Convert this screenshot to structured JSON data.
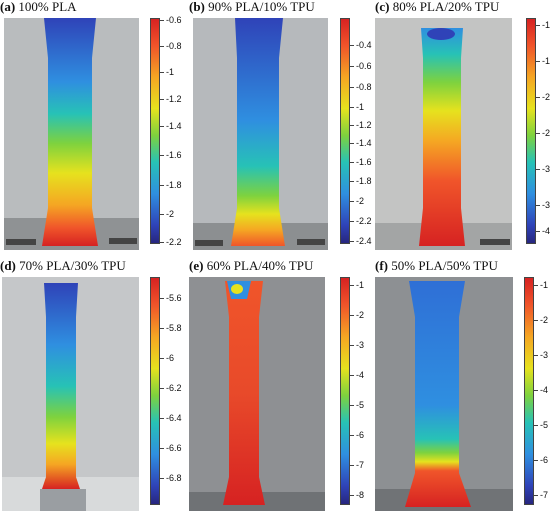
{
  "panels": [
    {
      "tag": "(a)",
      "title": "100% PLA",
      "ticks": [
        "-0.6",
        "-0.8",
        "-1",
        "-1.2",
        "-1.4",
        "-1.6",
        "-1.8",
        "-2",
        "-2.2"
      ]
    },
    {
      "tag": "(b)",
      "title": "90% PLA/10% TPU",
      "ticks": [
        "-0.4",
        "-0.6",
        "-0.8",
        "-1",
        "-1.2",
        "-1.4",
        "-1.6",
        "-1.8",
        "-2",
        "-2.2",
        "-2.4"
      ]
    },
    {
      "tag": "(c)",
      "title": "80% PLA/20% TPU",
      "ticks": [
        "-1",
        "-1.",
        "-2",
        "-2.",
        "-3",
        "-3.",
        "-4"
      ]
    },
    {
      "tag": "(d)",
      "title": "70% PLA/30% TPU",
      "ticks": [
        "-5.6",
        "-5.8",
        "-6",
        "-6.2",
        "-6.4",
        "-6.6",
        "-6.8"
      ]
    },
    {
      "tag": "(e)",
      "title": "60% PLA/40% TPU",
      "ticks": [
        "-1",
        "-2",
        "-3",
        "-4",
        "-5",
        "-6",
        "-7",
        "-8"
      ]
    },
    {
      "tag": "(f)",
      "title": "50% PLA/50% TPU",
      "ticks": [
        "-1",
        "-2",
        "-3",
        "-4",
        "-5",
        "-6",
        "-7"
      ]
    }
  ]
}
